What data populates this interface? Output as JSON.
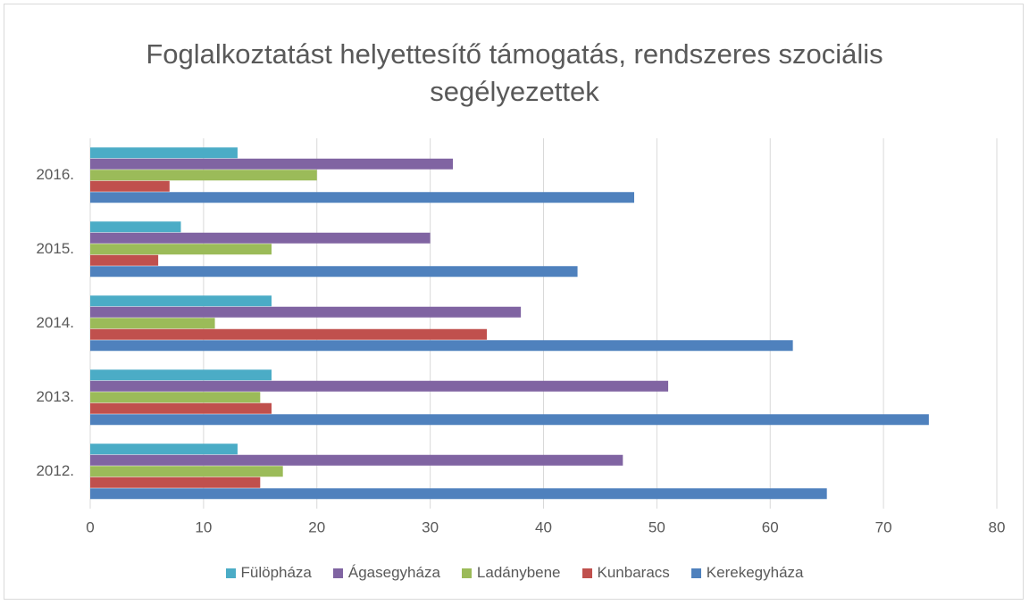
{
  "chart_data": {
    "type": "bar",
    "orientation": "horizontal",
    "title": "Foglalkoztatást helyettesítő támogatás, rendszeres szociális segélyezettek",
    "categories": [
      "2012.",
      "2013.",
      "2014.",
      "2015.",
      "2016."
    ],
    "series": [
      {
        "name": "Fülöpháza",
        "color": "#4bacc6",
        "values": [
          13,
          16,
          16,
          8,
          13
        ]
      },
      {
        "name": "Ágasegyháza",
        "color": "#8064a2",
        "values": [
          47,
          51,
          38,
          30,
          32
        ]
      },
      {
        "name": "Ladánybene",
        "color": "#9bbb59",
        "values": [
          17,
          15,
          11,
          16,
          20
        ]
      },
      {
        "name": "Kunbaracs",
        "color": "#c0504d",
        "values": [
          15,
          16,
          35,
          6,
          7
        ]
      },
      {
        "name": "Kerekegyháza",
        "color": "#4f81bd",
        "values": [
          65,
          74,
          62,
          43,
          48
        ]
      }
    ],
    "xlim": [
      0,
      80
    ],
    "xticks": [
      0,
      10,
      20,
      30,
      40,
      50,
      60,
      70,
      80
    ],
    "grid": true,
    "legend": "bottom"
  }
}
